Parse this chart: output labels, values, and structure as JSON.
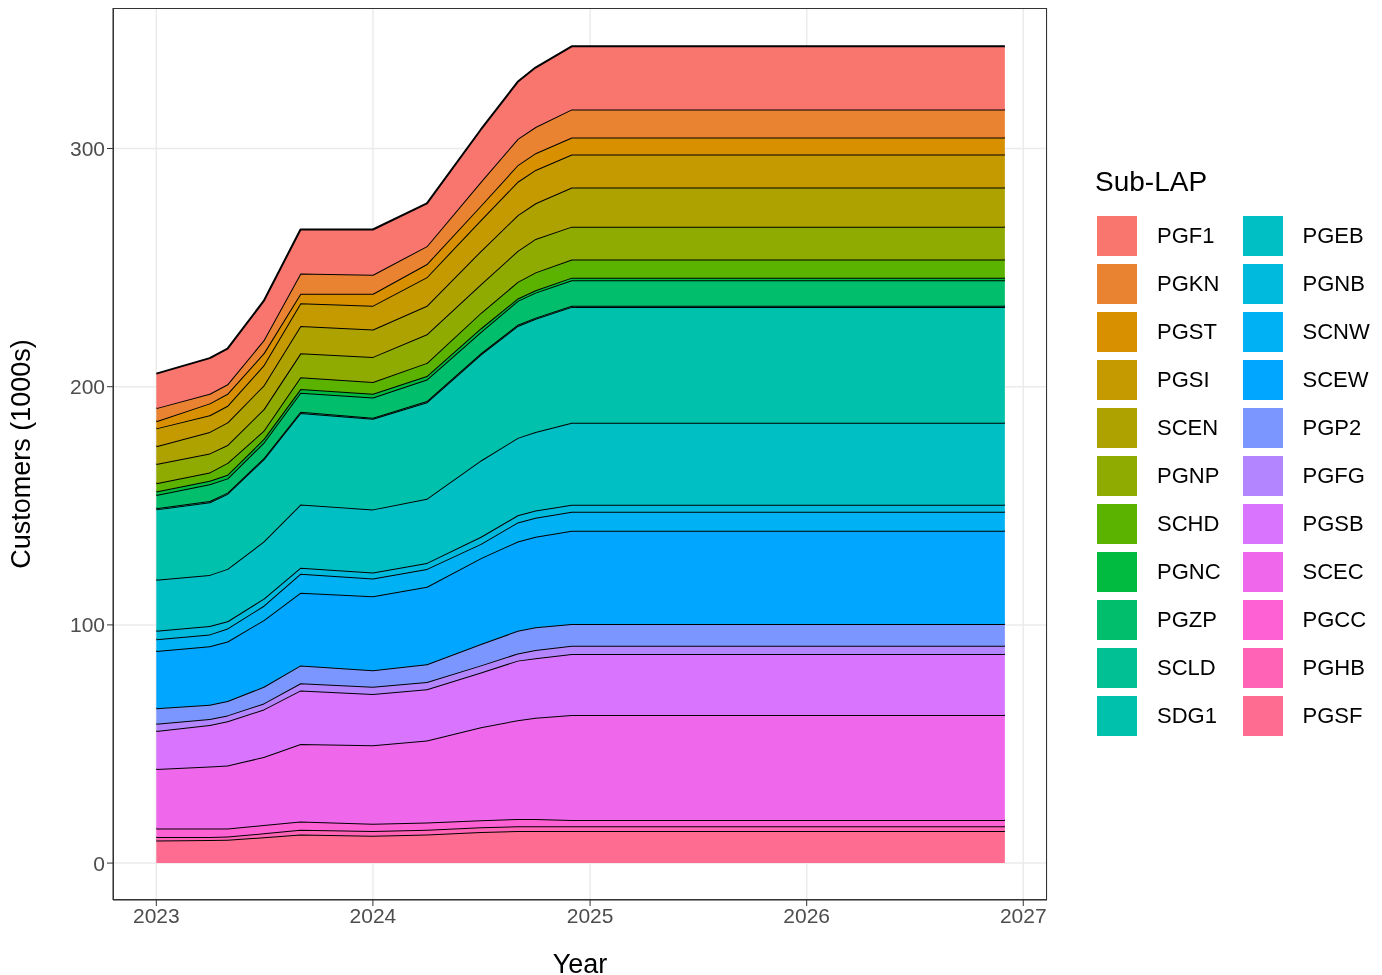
{
  "chart_data": {
    "type": "area",
    "stacked": true,
    "xlabel": "Year",
    "ylabel": "Customers (1000s)",
    "legend_title": "Sub-LAP",
    "legend": "right",
    "grid": true,
    "x": [
      "2023-01",
      "2023-04",
      "2023-05",
      "2023-07",
      "2023-09",
      "2024-01",
      "2024-04",
      "2024-07",
      "2024-09",
      "2024-10",
      "2024-12",
      "2026-12"
    ],
    "xlim": [
      "2022-10-20",
      "2027-02-10"
    ],
    "xticks": [
      "2023",
      "2024",
      "2025",
      "2026",
      "2027"
    ],
    "ylim": [
      -15.5,
      359
    ],
    "yticks": [
      0,
      100,
      200,
      300
    ],
    "series": [
      {
        "name": "PGSF",
        "color": "#ff6c91",
        "values": [
          9.5,
          9.7,
          9.8,
          10.8,
          12,
          11.5,
          12,
          13,
          13.5,
          13.5,
          13.5,
          13.5
        ]
      },
      {
        "name": "PGHB",
        "color": "#ff63b6",
        "values": [
          1.5,
          1.3,
          1.4,
          1.7,
          2,
          2,
          2,
          2,
          2,
          2,
          2,
          2
        ]
      },
      {
        "name": "PGCC",
        "color": "#fd61d3",
        "values": [
          3.5,
          3.5,
          3.3,
          3.5,
          3.5,
          3,
          3,
          3,
          3,
          3,
          2.6,
          2.6
        ]
      },
      {
        "name": "SCEC",
        "color": "#ef67eb",
        "values": [
          25,
          26,
          26.5,
          28.5,
          32.5,
          33,
          34.5,
          39,
          41.5,
          42.5,
          44.1,
          44.1
        ]
      },
      {
        "name": "PGSB",
        "color": "#d874fd",
        "values": [
          16,
          17.5,
          18.5,
          20,
          22.5,
          21.5,
          21.5,
          23,
          25,
          25,
          25.6,
          25.6
        ]
      },
      {
        "name": "PGFG",
        "color": "#b385ff",
        "values": [
          3,
          2.5,
          2.5,
          2.5,
          3,
          3,
          3,
          3,
          3,
          3.5,
          3.4,
          3.4
        ]
      },
      {
        "name": "PGP2",
        "color": "#7c96ff",
        "values": [
          6.5,
          6,
          6,
          7,
          7.5,
          7,
          7.5,
          9,
          9.5,
          9.5,
          9.2,
          9.2
        ]
      },
      {
        "name": "SCEW",
        "color": "#00a6ff",
        "values": [
          24,
          24.5,
          25,
          28,
          30.5,
          31,
          32.5,
          36,
          37.5,
          38,
          39.1,
          39.1
        ]
      },
      {
        "name": "SCNW",
        "color": "#00b2f3",
        "values": [
          5,
          5,
          5.5,
          6,
          8,
          7.5,
          7.5,
          6,
          8,
          8,
          8,
          8
        ]
      },
      {
        "name": "PGNB",
        "color": "#00bade",
        "values": [
          3.5,
          3.5,
          3,
          3,
          2.5,
          2.5,
          2.5,
          3,
          3,
          3,
          2.9,
          2.9
        ]
      },
      {
        "name": "PGEB",
        "color": "#00bfc4",
        "values": [
          21.5,
          21.5,
          22,
          24,
          26.5,
          26.5,
          27,
          32,
          32.5,
          33,
          34.5,
          34.5
        ]
      },
      {
        "name": "SDG1",
        "color": "#00c1ab",
        "values": [
          29.5,
          30.5,
          31.5,
          34.5,
          38.5,
          38,
          40.5,
          44.5,
          47,
          47.5,
          48.6,
          48.6
        ]
      },
      {
        "name": "SCLD",
        "color": "#00c094",
        "values": [
          0.5,
          0.5,
          0.5,
          0.5,
          0.5,
          0.5,
          0.5,
          0.5,
          0.5,
          0.5,
          0.5,
          0.5
        ]
      },
      {
        "name": "PGZP",
        "color": "#00be6c",
        "values": [
          5.5,
          7,
          6,
          6.5,
          8,
          8.5,
          9,
          9,
          10,
          10.5,
          10.7,
          10.7
        ]
      },
      {
        "name": "PGNC",
        "color": "#00bb3f",
        "values": [
          1.5,
          1.5,
          1.5,
          1.5,
          1.5,
          1.5,
          1.5,
          1.5,
          1,
          1,
          1.1,
          1.1
        ]
      },
      {
        "name": "SCHD",
        "color": "#5bb300",
        "values": [
          3.5,
          3.5,
          5,
          3.5,
          5,
          5,
          5.5,
          6.5,
          7,
          7.5,
          7.6,
          7.6
        ]
      },
      {
        "name": "PGNP",
        "color": "#8faa00",
        "values": [
          8,
          8,
          7.5,
          9,
          10,
          10.5,
          12,
          12,
          13,
          14,
          13.8,
          13.8
        ]
      },
      {
        "name": "SCEN",
        "color": "#ada200",
        "values": [
          7.5,
          9,
          9.5,
          10,
          11.5,
          11.5,
          12,
          14,
          15,
          15,
          16.4,
          16.4
        ]
      },
      {
        "name": "PGSI",
        "color": "#c49a00",
        "values": [
          7.5,
          7,
          7,
          8.5,
          9.5,
          10,
          12,
          13,
          14,
          14,
          13.9,
          13.9
        ]
      },
      {
        "name": "PGST",
        "color": "#d89000",
        "values": [
          3,
          5,
          5,
          5,
          4,
          5,
          5.5,
          6,
          7,
          7,
          7.1,
          7.1
        ]
      },
      {
        "name": "PGKN",
        "color": "#e98331",
        "values": [
          5.5,
          4,
          4,
          5.5,
          8.5,
          8,
          7.5,
          10,
          11,
          11,
          11.8,
          11.8
        ]
      },
      {
        "name": "PGF1",
        "color": "#f8766d",
        "values": [
          14.5,
          15,
          15,
          16.5,
          18.5,
          19,
          18,
          22,
          24,
          25,
          26.5,
          26.5
        ]
      }
    ]
  }
}
